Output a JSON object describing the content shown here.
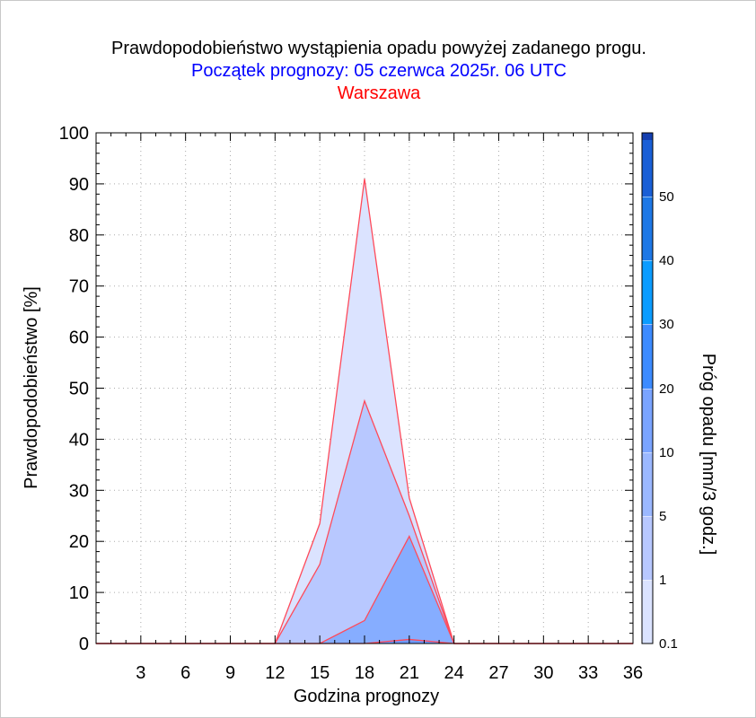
{
  "chart_data": {
    "type": "area",
    "title": "Prawdopodobieństwo wystąpienia opadu powyżej zadanego progu.",
    "subtitle": "Początek prognozy: 05 czerwca 2025r. 06 UTC",
    "location": "Warszawa",
    "xlabel": "Godzina prognozy",
    "ylabel": "Prawdopodobieństwo [%]",
    "colorbar_label": "Próg opadu [mm/3 godz.]",
    "xlim": [
      0,
      36
    ],
    "ylim": [
      0,
      100
    ],
    "x_ticks": [
      3,
      6,
      9,
      12,
      15,
      18,
      21,
      24,
      27,
      30,
      33,
      36
    ],
    "y_ticks": [
      0,
      10,
      20,
      30,
      40,
      50,
      60,
      70,
      80,
      90,
      100
    ],
    "grid": true,
    "x": [
      0,
      3,
      6,
      9,
      12,
      15,
      18,
      21,
      24,
      27,
      30,
      33,
      36
    ],
    "series": [
      {
        "threshold": 0.1,
        "color": "#dbe3ff",
        "values": [
          0,
          0,
          0,
          0,
          0,
          23.5,
          91,
          28.5,
          0,
          0,
          0,
          0,
          0
        ]
      },
      {
        "threshold": 1,
        "color": "#b8c8ff",
        "values": [
          0,
          0,
          0,
          0,
          0,
          15.5,
          47.5,
          25,
          0,
          0,
          0,
          0,
          0
        ]
      },
      {
        "threshold": 5,
        "color": "#86adff",
        "values": [
          0,
          0,
          0,
          0,
          0,
          0,
          4.5,
          21,
          0,
          0,
          0,
          0,
          0
        ]
      },
      {
        "threshold": 10,
        "color": "#6f9bff",
        "values": [
          0,
          0,
          0,
          0,
          0,
          0,
          0,
          0.8,
          0,
          0,
          0,
          0,
          0
        ]
      }
    ],
    "colorbar": {
      "labels": [
        "0.1",
        "1",
        "5",
        "10",
        "20",
        "30",
        "40",
        "50"
      ],
      "bands": [
        {
          "threshold": 0.1,
          "color": "#dbe3ff"
        },
        {
          "threshold": 1,
          "color": "#b8c8ff"
        },
        {
          "threshold": 5,
          "color": "#9bb8ff"
        },
        {
          "threshold": 10,
          "color": "#7aa4ff"
        },
        {
          "threshold": 20,
          "color": "#3d8bff"
        },
        {
          "threshold": 30,
          "color": "#0b9cff"
        },
        {
          "threshold": 40,
          "color": "#1e78e6"
        },
        {
          "threshold": 50,
          "color": "#1a5fd6"
        },
        {
          "threshold": 60,
          "color": "#143fb0"
        }
      ]
    },
    "outline_color": "#ff4a5a"
  }
}
